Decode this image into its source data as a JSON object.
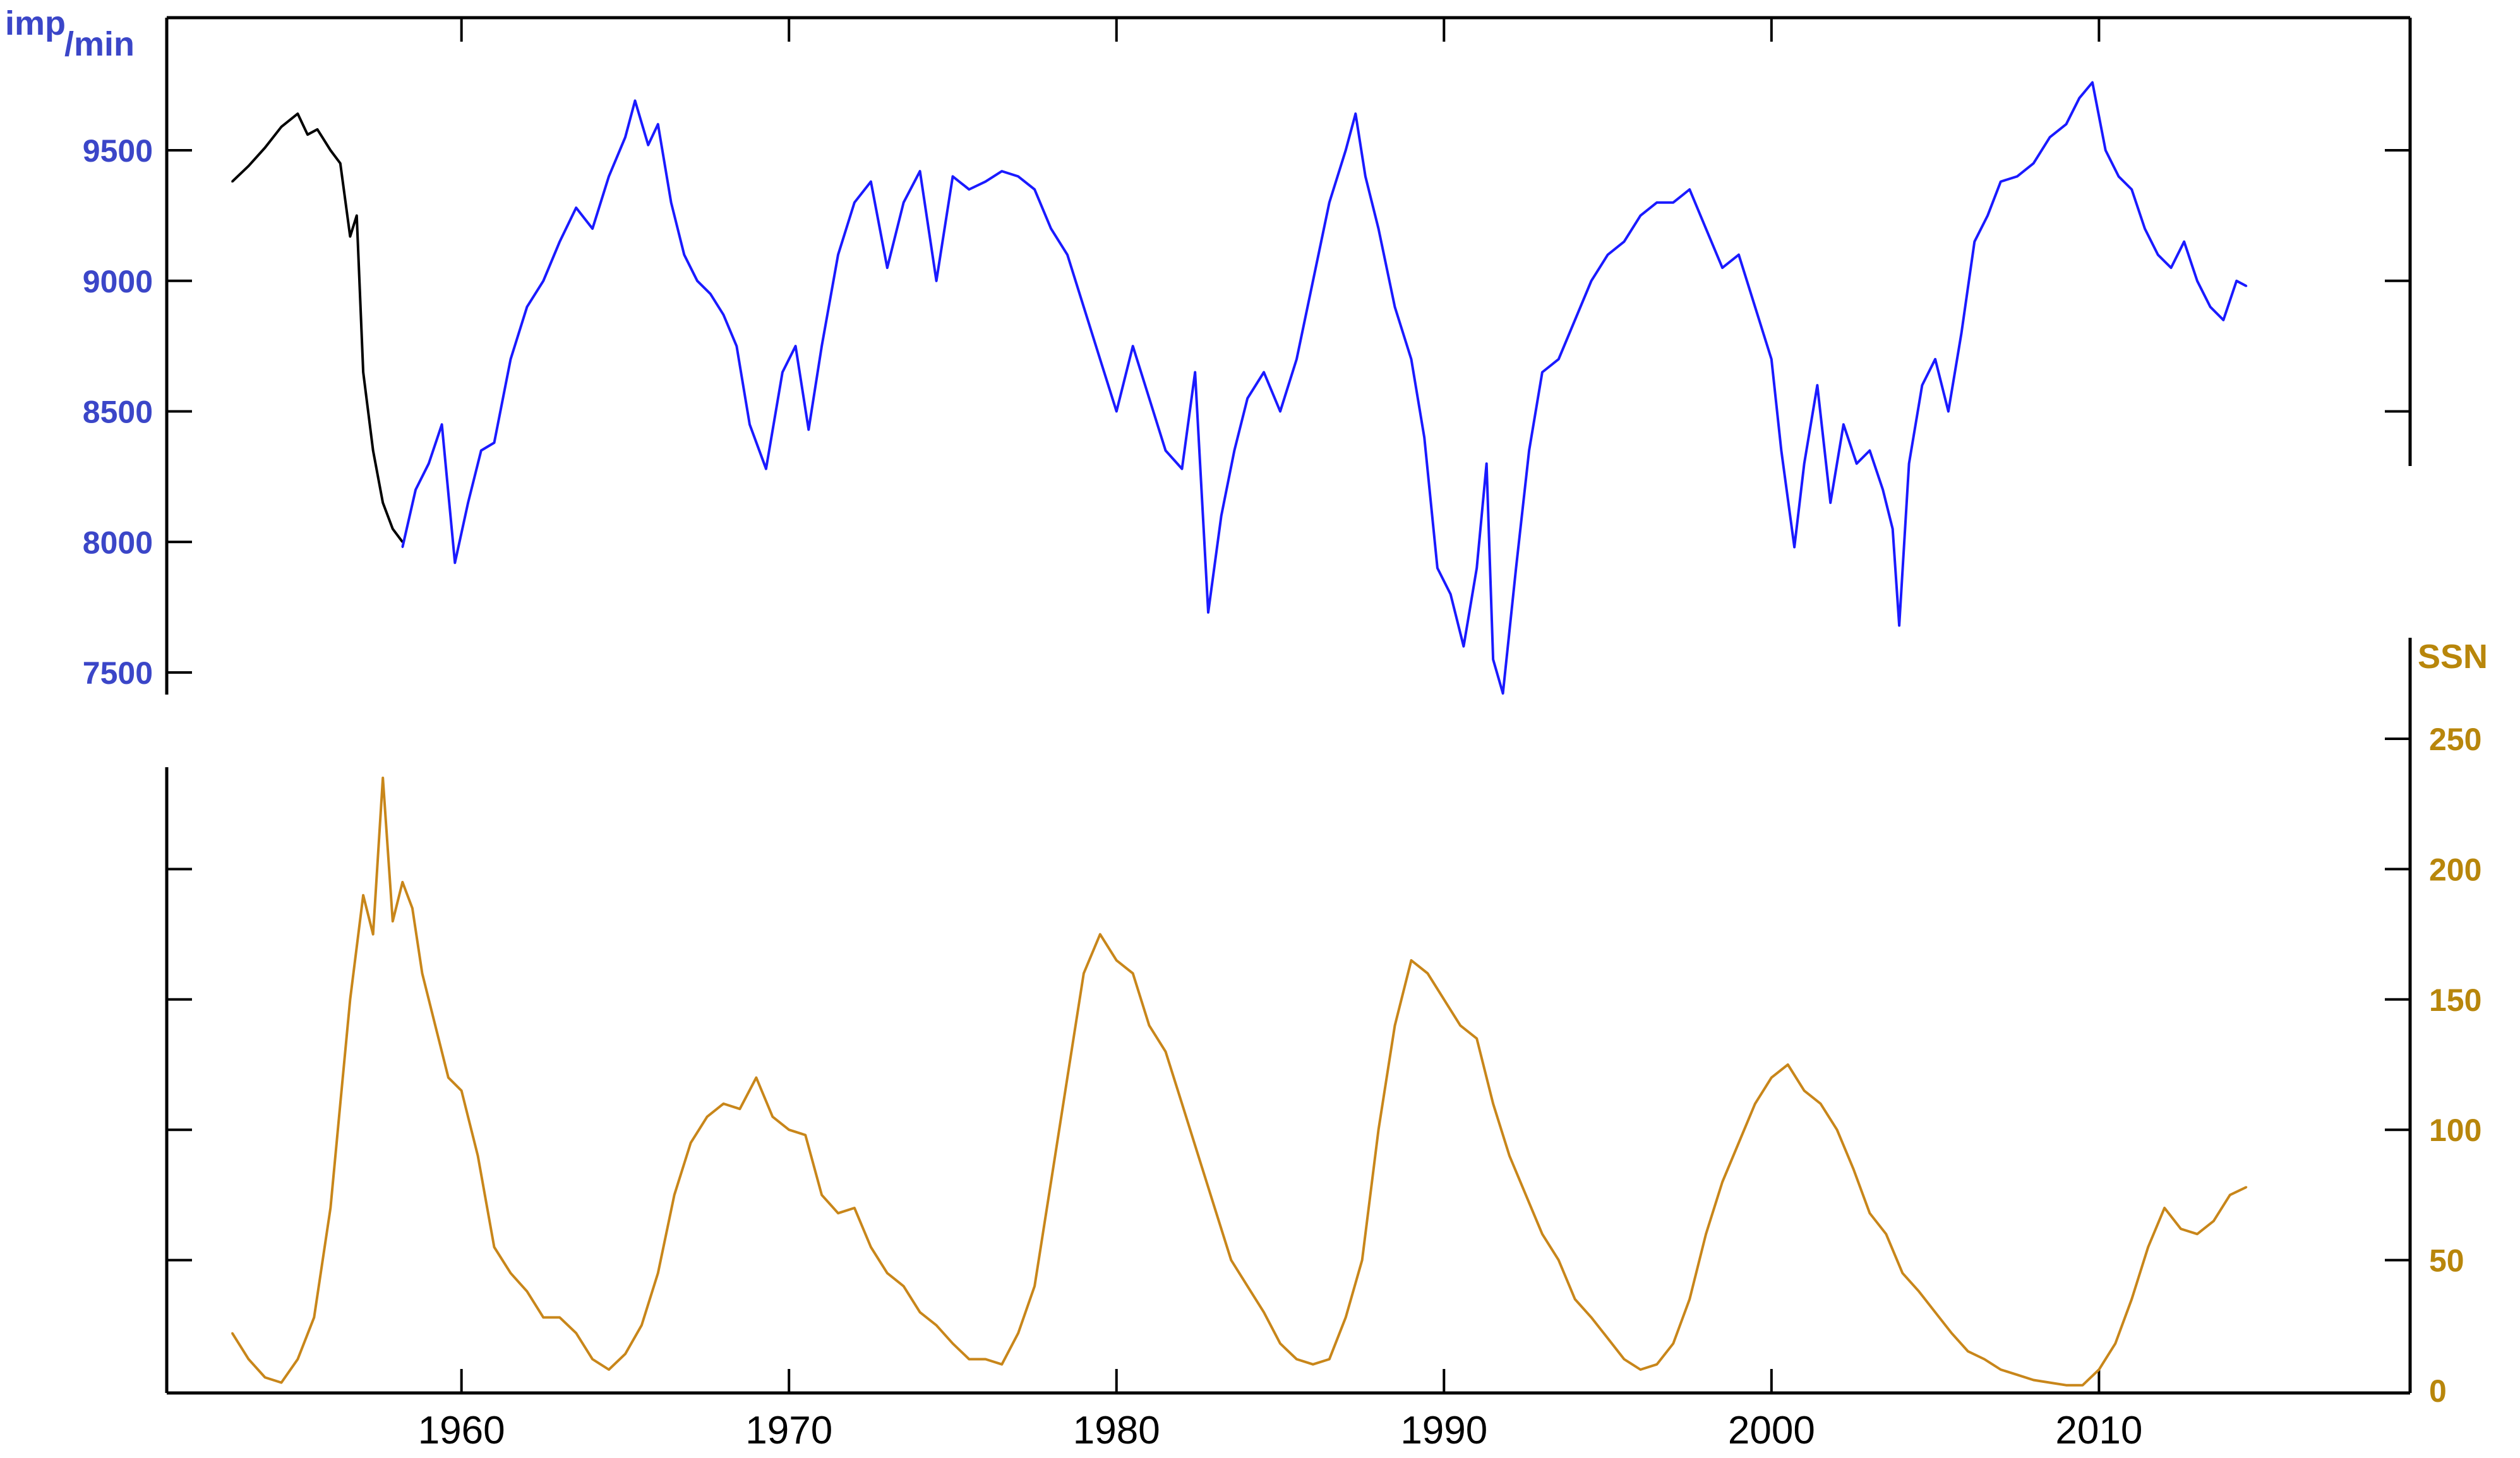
{
  "colors": {
    "neutron_series": "#1a1aff",
    "neutron_early_series": "#000000",
    "neutron_axis_labels": "#3b46c8",
    "ssn_series": "#c8861a",
    "ssn_axis_labels": "#b8860b",
    "axes": "#000000"
  },
  "chart_data": [
    {
      "type": "line",
      "ylabel_main": "imp",
      "ylabel_sub": "/min",
      "ylim": [
        7400,
        9900
      ],
      "yticks": [
        7500,
        8000,
        8500,
        9000,
        9500
      ],
      "ytick_labels": [
        "7500",
        "8000",
        "8500",
        "9000",
        "9500"
      ],
      "xlim": [
        1951,
        2019.5
      ],
      "grid": false,
      "series": [
        {
          "color_key": "neutron_early_series",
          "x": [
            1953.0,
            1953.5,
            1954.0,
            1954.5,
            1955.0,
            1955.3,
            1955.6,
            1956.0,
            1956.3,
            1956.6,
            1956.8,
            1957.0,
            1957.3,
            1957.6,
            1957.9,
            1958.2
          ],
          "y": [
            9380,
            9440,
            9510,
            9590,
            9640,
            9560,
            9580,
            9500,
            9450,
            9170,
            9250,
            8650,
            8350,
            8150,
            8050,
            8000
          ]
        },
        {
          "color_key": "neutron_series",
          "x": [
            1958.2,
            1958.6,
            1959.0,
            1959.4,
            1959.8,
            1960.2,
            1960.6,
            1961.0,
            1961.5,
            1962.0,
            1962.5,
            1963.0,
            1963.5,
            1964.0,
            1964.5,
            1965.0,
            1965.3,
            1965.7,
            1966.0,
            1966.4,
            1966.8,
            1967.2,
            1967.6,
            1968.0,
            1968.4,
            1968.8,
            1969.3,
            1969.8,
            1970.2,
            1970.6,
            1971.0,
            1971.5,
            1972.0,
            1972.5,
            1973.0,
            1973.5,
            1974.0,
            1974.5,
            1975.0,
            1975.5,
            1976.0,
            1976.5,
            1977.0,
            1977.5,
            1978.0,
            1978.5,
            1979.0,
            1979.5,
            1980.0,
            1980.5,
            1981.0,
            1981.5,
            1982.0,
            1982.4,
            1982.8,
            1983.2,
            1983.6,
            1984.0,
            1984.5,
            1985.0,
            1985.5,
            1986.0,
            1986.5,
            1987.0,
            1987.3,
            1987.6,
            1988.0,
            1988.5,
            1989.0,
            1989.4,
            1989.8,
            1990.2,
            1990.6,
            1991.0,
            1991.3,
            1991.5,
            1991.8,
            1992.2,
            1992.6,
            1993.0,
            1993.5,
            1994.0,
            1994.5,
            1995.0,
            1995.5,
            1996.0,
            1996.5,
            1997.0,
            1997.5,
            1998.0,
            1998.5,
            1999.0,
            1999.5,
            2000.0,
            2000.3,
            2000.7,
            2001.0,
            2001.4,
            2001.8,
            2002.2,
            2002.6,
            2003.0,
            2003.4,
            2003.7,
            2003.9,
            2004.2,
            2004.6,
            2005.0,
            2005.4,
            2005.8,
            2006.2,
            2006.6,
            2007.0,
            2007.5,
            2008.0,
            2008.5,
            2009.0,
            2009.4,
            2009.8,
            2010.2,
            2010.6,
            2011.0,
            2011.4,
            2011.8,
            2012.2,
            2012.6,
            2013.0,
            2013.4,
            2013.8,
            2014.2,
            2014.5
          ],
          "y": [
            7980,
            8200,
            8300,
            8450,
            7920,
            8150,
            8350,
            8380,
            8700,
            8900,
            9000,
            9150,
            9280,
            9200,
            9400,
            9550,
            9690,
            9520,
            9600,
            9300,
            9100,
            9000,
            8950,
            8870,
            8750,
            8450,
            8280,
            8650,
            8750,
            8430,
            8750,
            9100,
            9300,
            9380,
            9050,
            9300,
            9420,
            9000,
            9400,
            9350,
            9380,
            9420,
            9400,
            9350,
            9200,
            9100,
            8900,
            8700,
            8500,
            8750,
            8550,
            8350,
            8280,
            8650,
            7730,
            8100,
            8350,
            8550,
            8650,
            8500,
            8700,
            9000,
            9300,
            9500,
            9640,
            9400,
            9200,
            8900,
            8700,
            8400,
            7900,
            7800,
            7600,
            7900,
            8300,
            7550,
            7420,
            7900,
            8350,
            8650,
            8700,
            8850,
            9000,
            9100,
            9150,
            9250,
            9300,
            9300,
            9350,
            9200,
            9050,
            9100,
            8900,
            8700,
            8350,
            7980,
            8300,
            8600,
            8150,
            8450,
            8300,
            8350,
            8200,
            8050,
            7680,
            8300,
            8600,
            8700,
            8500,
            8800,
            9150,
            9250,
            9380,
            9400,
            9450,
            9550,
            9600,
            9700,
            9760,
            9500,
            9400,
            9350,
            9200,
            9100,
            9050,
            9150,
            9000,
            8900,
            8850,
            9000,
            8980
          ]
        }
      ]
    },
    {
      "type": "line",
      "ylabel": "SSN",
      "ylim": [
        0,
        260
      ],
      "yticks": [
        0,
        50,
        100,
        150,
        200,
        250
      ],
      "ytick_labels": [
        "0",
        "50",
        "100",
        "150",
        "200",
        "250"
      ],
      "xlim": [
        1951,
        2019.5
      ],
      "grid": false,
      "series": [
        {
          "color_key": "ssn_series",
          "x": [
            1953.0,
            1953.5,
            1954.0,
            1954.5,
            1955.0,
            1955.5,
            1956.0,
            1956.3,
            1956.6,
            1957.0,
            1957.3,
            1957.6,
            1957.9,
            1958.2,
            1958.5,
            1958.8,
            1959.2,
            1959.6,
            1960.0,
            1960.5,
            1961.0,
            1961.5,
            1962.0,
            1962.5,
            1963.0,
            1963.5,
            1964.0,
            1964.5,
            1965.0,
            1965.5,
            1966.0,
            1966.5,
            1967.0,
            1967.5,
            1968.0,
            1968.5,
            1969.0,
            1969.5,
            1970.0,
            1970.5,
            1971.0,
            1971.5,
            1972.0,
            1972.5,
            1973.0,
            1973.5,
            1974.0,
            1974.5,
            1975.0,
            1975.5,
            1976.0,
            1976.5,
            1977.0,
            1977.5,
            1978.0,
            1978.5,
            1979.0,
            1979.5,
            1980.0,
            1980.5,
            1981.0,
            1981.5,
            1982.0,
            1982.5,
            1983.0,
            1983.5,
            1984.0,
            1984.5,
            1985.0,
            1985.5,
            1986.0,
            1986.5,
            1987.0,
            1987.5,
            1988.0,
            1988.5,
            1989.0,
            1989.5,
            1990.0,
            1990.5,
            1991.0,
            1991.5,
            1992.0,
            1992.5,
            1993.0,
            1993.5,
            1994.0,
            1994.5,
            1995.0,
            1995.5,
            1996.0,
            1996.5,
            1997.0,
            1997.5,
            1998.0,
            1998.5,
            1999.0,
            1999.5,
            2000.0,
            2000.5,
            2001.0,
            2001.5,
            2002.0,
            2002.5,
            2003.0,
            2003.5,
            2004.0,
            2004.5,
            2005.0,
            2005.5,
            2006.0,
            2006.5,
            2007.0,
            2007.5,
            2008.0,
            2008.5,
            2009.0,
            2009.5,
            2010.0,
            2010.5,
            2011.0,
            2011.5,
            2012.0,
            2012.5,
            2013.0,
            2013.5,
            2014.0,
            2014.5
          ],
          "y": [
            22,
            12,
            5,
            3,
            12,
            28,
            70,
            110,
            150,
            190,
            175,
            235,
            180,
            195,
            185,
            160,
            140,
            120,
            115,
            90,
            55,
            45,
            38,
            28,
            28,
            22,
            12,
            8,
            14,
            25,
            45,
            75,
            95,
            105,
            110,
            108,
            120,
            105,
            100,
            98,
            75,
            68,
            70,
            55,
            45,
            40,
            30,
            25,
            18,
            12,
            12,
            10,
            22,
            40,
            80,
            120,
            160,
            175,
            165,
            160,
            140,
            130,
            110,
            90,
            70,
            50,
            40,
            30,
            18,
            12,
            10,
            12,
            28,
            50,
            100,
            140,
            165,
            160,
            150,
            140,
            135,
            110,
            90,
            75,
            60,
            50,
            35,
            28,
            20,
            12,
            8,
            10,
            18,
            35,
            60,
            80,
            95,
            110,
            120,
            125,
            115,
            110,
            100,
            85,
            68,
            60,
            45,
            38,
            30,
            22,
            15,
            12,
            8,
            6,
            4,
            3,
            2,
            2,
            8,
            18,
            35,
            55,
            70,
            62,
            60,
            65,
            75,
            78
          ]
        }
      ]
    }
  ],
  "x_axis": {
    "ticks": [
      1960,
      1970,
      1980,
      1990,
      2000,
      2010
    ],
    "labels": [
      "1960",
      "1970",
      "1980",
      "1990",
      "2000",
      "2010"
    ]
  }
}
